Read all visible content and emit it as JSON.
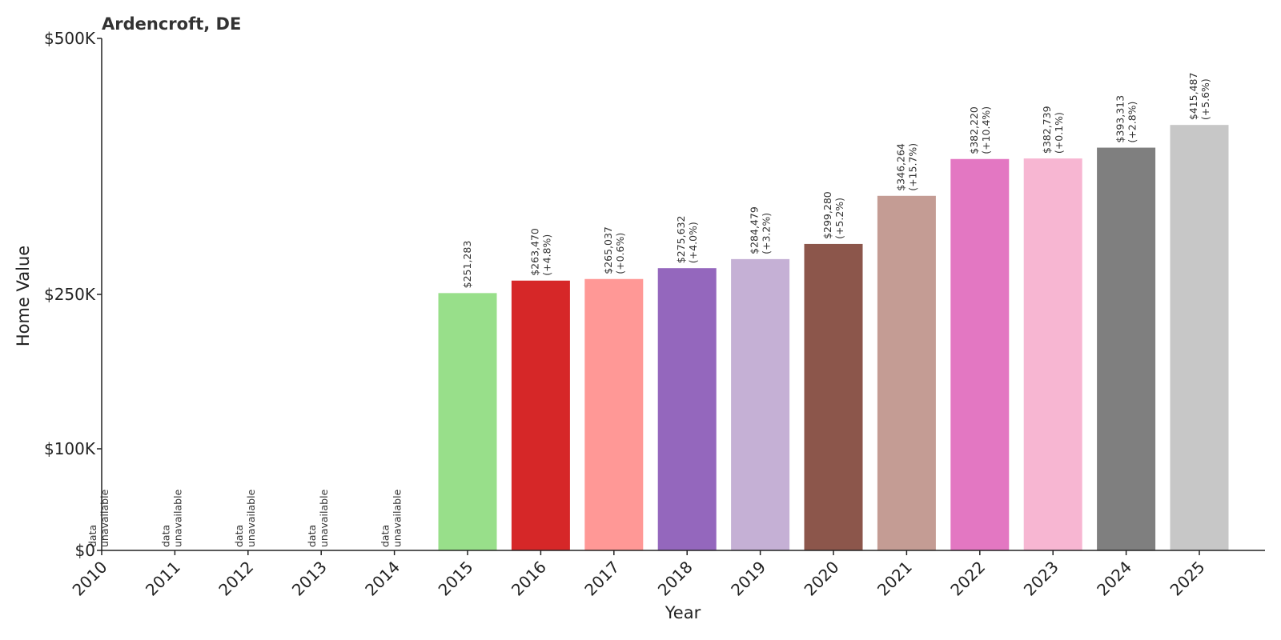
{
  "chart_data": {
    "type": "bar",
    "title": "Ardencroft, DE",
    "xlabel": "Year",
    "ylabel": "Home Value",
    "categories": [
      "2010",
      "2011",
      "2012",
      "2013",
      "2014",
      "2015",
      "2016",
      "2017",
      "2018",
      "2019",
      "2020",
      "2021",
      "2022",
      "2023",
      "2024",
      "2025"
    ],
    "values": [
      null,
      null,
      null,
      null,
      null,
      251283,
      263470,
      265037,
      275632,
      284479,
      299280,
      346264,
      382220,
      382739,
      393313,
      415487
    ],
    "value_labels": [
      "",
      "",
      "",
      "",
      "",
      "$251,283",
      "$263,470",
      "$265,037",
      "$275,632",
      "$284,479",
      "$299,280",
      "$346,264",
      "$382,220",
      "$382,739",
      "$393,313",
      "$415,487"
    ],
    "change_labels": [
      "",
      "",
      "",
      "",
      "",
      "",
      "(+4.8%)",
      "(+0.6%)",
      "(+4.0%)",
      "(+3.2%)",
      "(+5.2%)",
      "(+15.7%)",
      "(+10.4%)",
      "(+0.1%)",
      "(+2.8%)",
      "(+5.6%)"
    ],
    "unavailable_label": [
      "data",
      "unavailable"
    ],
    "colors": [
      "#98df8a",
      "#98df8a",
      "#98df8a",
      "#98df8a",
      "#98df8a",
      "#98df8a",
      "#d62728",
      "#ff9896",
      "#9467bd",
      "#c5b0d5",
      "#8c564b",
      "#c49c94",
      "#e377c2",
      "#f7b6d2",
      "#7f7f7f",
      "#c7c7c7"
    ],
    "yticks": [
      0,
      100000,
      250000,
      500000
    ],
    "ytick_labels": [
      "$0",
      "$100K",
      "$250K",
      "$500K"
    ],
    "ylim": [
      0,
      500000
    ],
    "grid": false,
    "legend": "none"
  }
}
